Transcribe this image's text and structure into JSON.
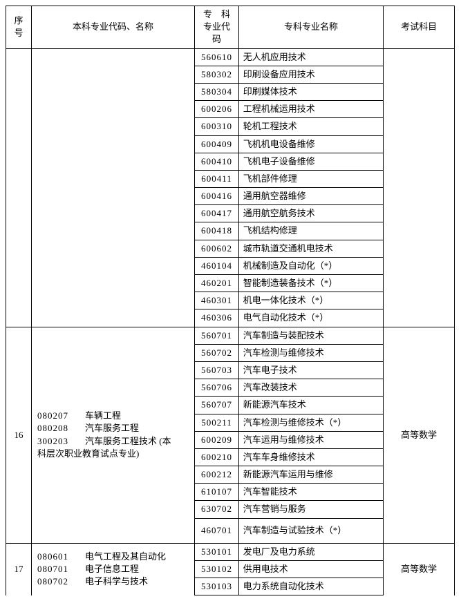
{
  "header": {
    "seq": "序号",
    "bk": "本科专业代码、名称",
    "code_l1": "专　科",
    "code_l2": "专业代码",
    "name": "专科专业名称",
    "exam": "考试科目"
  },
  "groups": [
    {
      "seq": "",
      "bk_lines": [],
      "exam": "",
      "seq_open_top": true,
      "bk_open_top": true,
      "exam_open_top": true,
      "rows": [
        {
          "code": "560610",
          "name": "无人机应用技术"
        },
        {
          "code": "580302",
          "name": "印刷设备应用技术"
        },
        {
          "code": "580304",
          "name": "印刷媒体技术"
        },
        {
          "code": "600206",
          "name": "工程机械运用技术"
        },
        {
          "code": "600310",
          "name": "轮机工程技术"
        },
        {
          "code": "600409",
          "name": "飞机机电设备维修"
        },
        {
          "code": "600410",
          "name": "飞机电子设备维修"
        },
        {
          "code": "600411",
          "name": "飞机部件修理"
        },
        {
          "code": "600416",
          "name": "通用航空器维修"
        },
        {
          "code": "600417",
          "name": "通用航空航务技术"
        },
        {
          "code": "600418",
          "name": "飞机结构修理"
        },
        {
          "code": "600602",
          "name": "城市轨道交通机电技术"
        },
        {
          "code": "460104",
          "name": "机械制造及自动化（*）"
        },
        {
          "code": "460201",
          "name": "智能制造装备技术（*）"
        },
        {
          "code": "460301",
          "name": "机电一体化技术（*）"
        },
        {
          "code": "460306",
          "name": "电气自动化技术（*）"
        }
      ]
    },
    {
      "seq": "16",
      "bk_lines": [
        {
          "code": "080207",
          "name": "车辆工程"
        },
        {
          "code": "080208",
          "name": "汽车服务工程"
        },
        {
          "code": "300203",
          "name": "汽车服务工程技术 (本"
        },
        {
          "code": "",
          "name": "科层次职业教育试点专业)"
        }
      ],
      "exam": "高等数学",
      "rows": [
        {
          "code": "560701",
          "name": "汽车制造与装配技术"
        },
        {
          "code": "560702",
          "name": "汽车检测与维修技术"
        },
        {
          "code": "560703",
          "name": "汽车电子技术"
        },
        {
          "code": "560706",
          "name": "汽车改装技术"
        },
        {
          "code": "560707",
          "name": "新能源汽车技术"
        },
        {
          "code": "500211",
          "name": "汽车检测与维修技术（*）"
        },
        {
          "code": "600209",
          "name": "汽车运用与维修技术"
        },
        {
          "code": "600210",
          "name": "汽车车身维修技术"
        },
        {
          "code": "600212",
          "name": "新能源汽车运用与维修"
        },
        {
          "code": "610107",
          "name": "汽车智能技术"
        },
        {
          "code": "630702",
          "name": "汽车营销与服务"
        },
        {
          "code": "460701",
          "name": "汽车制造与试验技术（*）",
          "tall": true
        }
      ]
    },
    {
      "seq": "17",
      "bk_lines": [
        {
          "code": "080601",
          "name": "电气工程及其自动化"
        },
        {
          "code": "080701",
          "name": "电子信息工程"
        },
        {
          "code": "080702",
          "name": "电子科学与技术"
        }
      ],
      "exam": "高等数学",
      "seq_open_bottom": true,
      "bk_open_bottom": true,
      "exam_open_bottom": true,
      "rows": [
        {
          "code": "530101",
          "name": "发电厂及电力系统"
        },
        {
          "code": "530102",
          "name": "供用电技术"
        },
        {
          "code": "530103",
          "name": "电力系统自动化技术"
        }
      ]
    }
  ]
}
